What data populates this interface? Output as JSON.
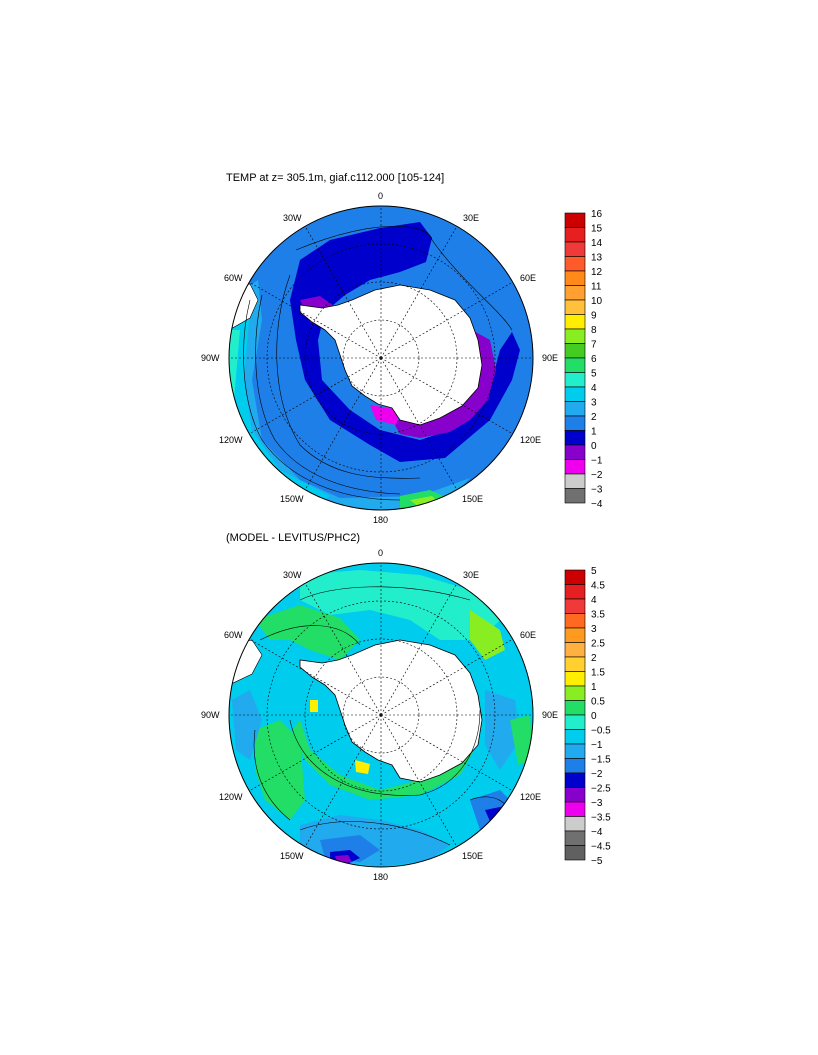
{
  "panel_top": {
    "title": "TEMP at z= 305.1m, giaf.c112.000 [105-124]",
    "lon_labels": {
      "l0": "0",
      "l30e": "30E",
      "l60e": "60E",
      "l90e": "90E",
      "l120e": "120E",
      "l150e": "150E",
      "l180": "180",
      "l150w": "150W",
      "l120w": "120W",
      "l90w": "90W",
      "l60w": "60W",
      "l30w": "30W"
    },
    "colorbar": {
      "ticks": [
        "16",
        "15",
        "14",
        "13",
        "12",
        "11",
        "10",
        "9",
        "8",
        "7",
        "6",
        "5",
        "4",
        "3",
        "2",
        "1",
        "0",
        "−1",
        "−2",
        "−3",
        "−4"
      ],
      "colors": [
        "#cc0000",
        "#e62020",
        "#f03a3a",
        "#ff5a2a",
        "#ff8a1a",
        "#ffa030",
        "#ffc03a",
        "#ffee00",
        "#88ee22",
        "#44cc22",
        "#22dd66",
        "#22eecc",
        "#00ccee",
        "#22aaee",
        "#1e7fe8",
        "#0000cc",
        "#8800cc",
        "#ee00ee",
        "#cccccc",
        "#707070"
      ]
    }
  },
  "panel_bottom": {
    "title": "(MODEL - LEVITUS/PHC2)",
    "lon_labels": {
      "l0": "0",
      "l30e": "30E",
      "l60e": "60E",
      "l90e": "90E",
      "l120e": "120E",
      "l150e": "150E",
      "l180": "180",
      "l150w": "150W",
      "l120w": "120W",
      "l90w": "90W",
      "l60w": "60W",
      "l30w": "30W"
    },
    "colorbar": {
      "ticks": [
        "5",
        "4.5",
        "4",
        "3.5",
        "3",
        "2.5",
        "2",
        "1.5",
        "1",
        "0.5",
        "0",
        "−0.5",
        "−1",
        "−1.5",
        "−2",
        "−2.5",
        "−3",
        "−3.5",
        "−4",
        "−4.5",
        "−5"
      ],
      "colors": [
        "#cc0000",
        "#e62020",
        "#f03a3a",
        "#ff6a20",
        "#ff9a20",
        "#ffb040",
        "#ffd030",
        "#ffee00",
        "#88ee22",
        "#22dd66",
        "#22eecc",
        "#00ccee",
        "#22aaee",
        "#1e7fe8",
        "#0000cc",
        "#8800cc",
        "#ee00ee",
        "#cccccc",
        "#707070",
        "#606060"
      ]
    }
  }
}
